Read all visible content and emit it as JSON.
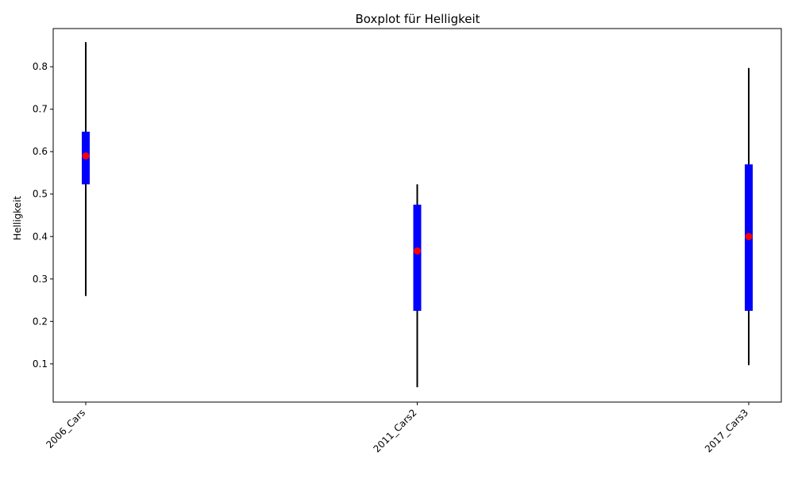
{
  "chart_data": {
    "type": "boxplot",
    "title": "Boxplot für Helligkeit",
    "xlabel": "",
    "ylabel": "Helligkeit",
    "ylim": [
      0.01,
      0.89
    ],
    "yticks": [
      "0.1",
      "0.2",
      "0.3",
      "0.4",
      "0.5",
      "0.6",
      "0.7",
      "0.8"
    ],
    "grid": false,
    "categories": [
      "2006_Cars",
      "2011_Cars2",
      "2017_Cars3"
    ],
    "boxes": [
      {
        "category": "2006_Cars",
        "whisker_low": 0.26,
        "q1": 0.523,
        "median": 0.59,
        "q3": 0.647,
        "whisker_high": 0.858
      },
      {
        "category": "2011_Cars2",
        "whisker_low": 0.045,
        "q1": 0.225,
        "median": 0.366,
        "q3": 0.475,
        "whisker_high": 0.523
      },
      {
        "category": "2017_Cars3",
        "whisker_low": 0.097,
        "q1": 0.225,
        "median": 0.4,
        "q3": 0.57,
        "whisker_high": 0.797
      }
    ],
    "colors": {
      "box": "#0000ff",
      "median": "#ff0000",
      "whisker": "#000000"
    }
  }
}
